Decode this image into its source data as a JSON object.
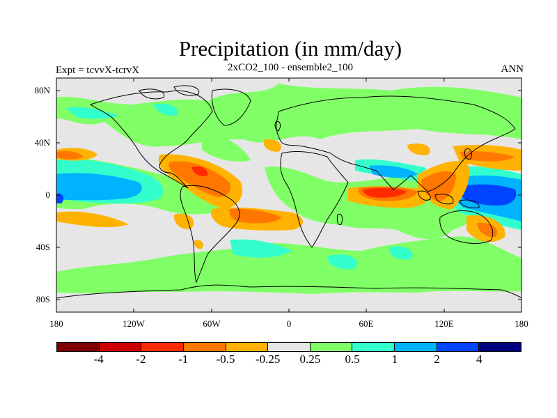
{
  "title": "Precipitation (in mm/day)",
  "subtitle": "2xCO2_100 - ensemble2_100",
  "left_label": "Expt = tcvvX-tcrvX",
  "right_label": "ANN",
  "lat_ticks": [
    "80N",
    "40N",
    "0",
    "40S",
    "80S"
  ],
  "lon_ticks": [
    "180",
    "120W",
    "60W",
    "0",
    "60E",
    "120E",
    "180"
  ],
  "colorbar": {
    "colors": [
      "#7f0000",
      "#cc0000",
      "#ff2a00",
      "#ff7700",
      "#ffb300",
      "#e6e6e6",
      "#80ff66",
      "#33ffcc",
      "#00b3ff",
      "#0044ff",
      "#00007f"
    ],
    "labels": [
      "-4",
      "-2",
      "-1",
      "-0.5",
      "-0.25",
      "0.25",
      "0.5",
      "1",
      "2",
      "4"
    ]
  }
}
